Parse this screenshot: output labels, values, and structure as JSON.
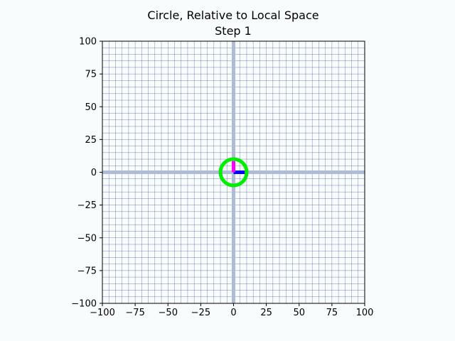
{
  "chart_data": {
    "type": "line",
    "title": "Circle, Relative to Local Space",
    "subtitle": "Step 1",
    "xlabel": "",
    "ylabel": "",
    "xlim": [
      -100,
      100
    ],
    "ylim": [
      -100,
      100
    ],
    "xticks": [
      "−100",
      "−75",
      "−50",
      "−25",
      "0",
      "25",
      "50",
      "75",
      "100"
    ],
    "yticks": [
      "100",
      "75",
      "50",
      "25",
      "0",
      "−25",
      "−50",
      "−75",
      "−100"
    ],
    "xtick_values": [
      -100,
      -75,
      -50,
      -25,
      0,
      25,
      50,
      75,
      100
    ],
    "ytick_values": [
      100,
      75,
      50,
      25,
      0,
      -25,
      -50,
      -75,
      -100
    ],
    "grid": true,
    "minor_grid_step": 5,
    "colors": {
      "background": "#f8fcfc",
      "grid": "#2a3b7f",
      "axis_lines": "#b0bcd6",
      "circle": "#00ee00",
      "x_basis": "#0000ff",
      "y_basis": "#ff00ff"
    },
    "series": [
      {
        "kind": "circle",
        "center": [
          0,
          0
        ],
        "radius": 10
      },
      {
        "kind": "segment",
        "from": [
          0,
          0
        ],
        "to": [
          8.5,
          0
        ]
      },
      {
        "kind": "segment",
        "from": [
          0,
          0
        ],
        "to": [
          0,
          8.5
        ]
      }
    ]
  }
}
